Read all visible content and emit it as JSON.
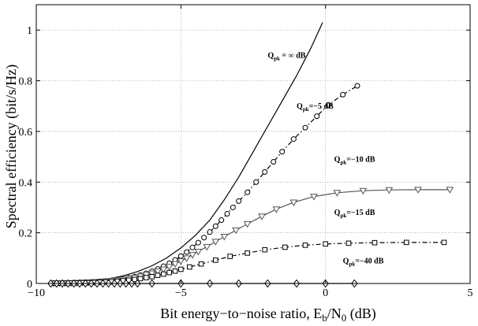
{
  "chart_data": {
    "type": "line",
    "xlabel": {
      "pre": "Bit energy−to−noise ratio, E",
      "sub1": "b",
      "mid": "/N",
      "sub2": "0",
      "post": " (dB)"
    },
    "ylabel": "Spectral efficiency (bit/s/Hz)",
    "xlim": [
      -10,
      5
    ],
    "ylim": [
      0,
      1.1
    ],
    "xticks": [
      -10,
      -5,
      0,
      5
    ],
    "xtick_labels": [
      "−10",
      "−5",
      "0",
      "5"
    ],
    "yticks": [
      0,
      0.2,
      0.4,
      0.6,
      0.8,
      1
    ],
    "ytick_labels": [
      "0",
      "0.2",
      "0.4",
      "0.6",
      "0.8",
      "1"
    ],
    "grid": true,
    "series": [
      {
        "line": "solid",
        "marker": "none",
        "color": "#000000",
        "x": [
          -9.5,
          -9.0,
          -8.5,
          -8.0,
          -7.5,
          -7.0,
          -6.5,
          -6.0,
          -5.5,
          -5.0,
          -4.5,
          -4.0,
          -3.5,
          -3.0,
          -2.5,
          -2.0,
          -1.5,
          -1.0,
          -0.5,
          -0.1
        ],
        "y": [
          0.0,
          0.002,
          0.005,
          0.01,
          0.018,
          0.03,
          0.047,
          0.07,
          0.1,
          0.14,
          0.19,
          0.25,
          0.33,
          0.42,
          0.52,
          0.62,
          0.72,
          0.82,
          0.93,
          1.03
        ]
      },
      {
        "line": "dashdot",
        "marker": "circle",
        "color": "#000000",
        "x": [
          -9.4,
          -9.2,
          -9.0,
          -8.8,
          -8.6,
          -8.4,
          -8.2,
          -8.0,
          -7.8,
          -7.6,
          -7.4,
          -7.2,
          -7.0,
          -6.8,
          -6.6,
          -6.4,
          -6.2,
          -6.0,
          -5.8,
          -5.6,
          -5.4,
          -5.2,
          -5.0,
          -4.8,
          -4.6,
          -4.4,
          -4.2,
          -4.0,
          -3.8,
          -3.6,
          -3.4,
          -3.2,
          -3.0,
          -2.7,
          -2.4,
          -2.1,
          -1.8,
          -1.5,
          -1.1,
          -0.7,
          -0.3,
          0.1,
          0.6,
          1.1,
          1.6
        ],
        "y": [
          0.001,
          0.001,
          0.002,
          0.002,
          0.003,
          0.004,
          0.005,
          0.006,
          0.008,
          0.01,
          0.012,
          0.015,
          0.018,
          0.022,
          0.027,
          0.033,
          0.04,
          0.048,
          0.057,
          0.068,
          0.08,
          0.093,
          0.108,
          0.124,
          0.142,
          0.161,
          0.181,
          0.203,
          0.226,
          0.25,
          0.275,
          0.3,
          0.325,
          0.36,
          0.4,
          0.44,
          0.48,
          0.52,
          0.57,
          0.615,
          0.66,
          0.705,
          0.745,
          0.78,
          0.71
        ],
        "show_first_n": 44
      },
      {
        "line": "solid",
        "marker": "triangle-down",
        "color": "#555555",
        "x": [
          -9.4,
          -9.2,
          -9.0,
          -8.8,
          -8.6,
          -8.4,
          -8.2,
          -8.0,
          -7.8,
          -7.6,
          -7.4,
          -7.2,
          -7.0,
          -6.8,
          -6.6,
          -6.4,
          -6.2,
          -6.0,
          -5.8,
          -5.6,
          -5.4,
          -5.2,
          -5.0,
          -4.8,
          -4.6,
          -4.4,
          -4.1,
          -3.8,
          -3.5,
          -3.1,
          -2.7,
          -2.2,
          -1.7,
          -1.1,
          -0.4,
          0.4,
          1.3,
          2.2,
          3.2,
          4.3
        ],
        "y": [
          0.001,
          0.001,
          0.002,
          0.002,
          0.003,
          0.004,
          0.005,
          0.006,
          0.007,
          0.009,
          0.011,
          0.013,
          0.016,
          0.019,
          0.023,
          0.028,
          0.034,
          0.04,
          0.048,
          0.056,
          0.066,
          0.077,
          0.088,
          0.1,
          0.113,
          0.126,
          0.145,
          0.165,
          0.185,
          0.21,
          0.235,
          0.265,
          0.293,
          0.32,
          0.343,
          0.358,
          0.366,
          0.369,
          0.37,
          0.37
        ]
      },
      {
        "line": "dashdot",
        "marker": "square",
        "color": "#000000",
        "x": [
          -9.4,
          -9.2,
          -9.0,
          -8.8,
          -8.6,
          -8.4,
          -8.2,
          -8.0,
          -7.8,
          -7.6,
          -7.4,
          -7.2,
          -7.0,
          -6.8,
          -6.6,
          -6.4,
          -6.2,
          -6.0,
          -5.8,
          -5.6,
          -5.4,
          -5.2,
          -5.0,
          -4.7,
          -4.3,
          -3.8,
          -3.3,
          -2.7,
          -2.1,
          -1.4,
          -0.7,
          0.0,
          0.8,
          1.7,
          2.8,
          4.1
        ],
        "y": [
          0.001,
          0.001,
          0.001,
          0.002,
          0.002,
          0.003,
          0.003,
          0.004,
          0.005,
          0.006,
          0.007,
          0.009,
          0.011,
          0.013,
          0.016,
          0.019,
          0.023,
          0.027,
          0.032,
          0.037,
          0.043,
          0.049,
          0.056,
          0.065,
          0.077,
          0.092,
          0.107,
          0.12,
          0.133,
          0.143,
          0.151,
          0.156,
          0.159,
          0.161,
          0.162,
          0.162
        ]
      },
      {
        "line": "solid",
        "marker": "diamond",
        "color": "#000000",
        "x": [
          -9.5,
          -9.3,
          -9.1,
          -8.9,
          -8.7,
          -8.5,
          -8.3,
          -8.1,
          -7.9,
          -7.7,
          -7.5,
          -7.3,
          -7.1,
          -6.9,
          -6.7,
          -6.5,
          -6.0,
          -5.0,
          -4.0,
          -3.0,
          -2.0,
          -1.0,
          0.0,
          1.0
        ],
        "y": [
          0,
          0,
          0,
          0,
          0,
          0,
          0,
          0,
          0,
          0,
          0,
          0,
          0,
          0,
          0,
          0,
          0,
          0,
          0,
          0,
          0,
          0,
          0,
          0
        ]
      }
    ],
    "annotations": [
      {
        "q": "Q",
        "sub": "pk",
        "val": " = ∞ dB",
        "x": -2.0,
        "y": 0.89
      },
      {
        "q": "Q",
        "sub": "pk",
        "val": "=−5 dB",
        "x": -1.0,
        "y": 0.69
      },
      {
        "q": "Q",
        "sub": "pk",
        "val": "=−10 dB",
        "x": 0.3,
        "y": 0.48
      },
      {
        "q": "Q",
        "sub": "pk",
        "val": "=−15 dB",
        "x": 0.3,
        "y": 0.27
      },
      {
        "q": "Q",
        "sub": "pk",
        "val": "=−40 dB",
        "x": 0.6,
        "y": 0.08
      }
    ]
  }
}
